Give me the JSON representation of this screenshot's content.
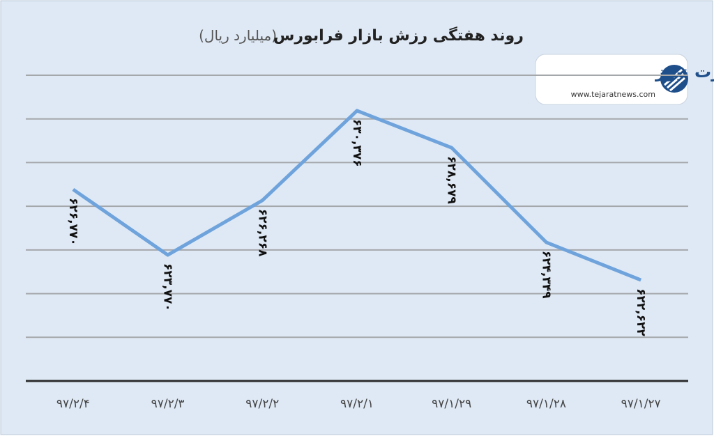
{
  "chart_data": {
    "type": "line",
    "title": "روند هفتگی رزش بازار فرابورس",
    "subtitle": "(میلیارد ریال)",
    "logo": {
      "name": "تجارت نیوز",
      "url": "www.tejaratnews.com"
    },
    "categories": [
      "۹۷/۲/۴",
      "۹۷/۲/۳",
      "۹۷/۲/۲",
      "۹۷/۲/۱",
      "۹۷/۱/۲۹",
      "۹۷/۱/۲۸",
      "۹۷/۱/۲۷"
    ],
    "series": [
      {
        "color": "#6fa3dc",
        "values": [
          626770,
          623770,
          626268,
          630376,
          628679,
          624349,
          622622
        ],
        "value_labels": [
          "۶۲۶,۷۷۰",
          "۶۲۳,۷۷۰",
          "۶۲۶,۲۶۸",
          "۶۳۰,۳۷۶",
          "۶۲۸,۶۷۹",
          "۶۲۴,۳۴۹",
          "۶۲۲,۶۲۲"
        ]
      }
    ],
    "ylim": [
      618000,
      632000
    ],
    "yticks": [
      618000,
      620000,
      622000,
      624000,
      626000,
      628000,
      630000,
      632000
    ],
    "show_ytick_labels": false,
    "grid": true
  }
}
